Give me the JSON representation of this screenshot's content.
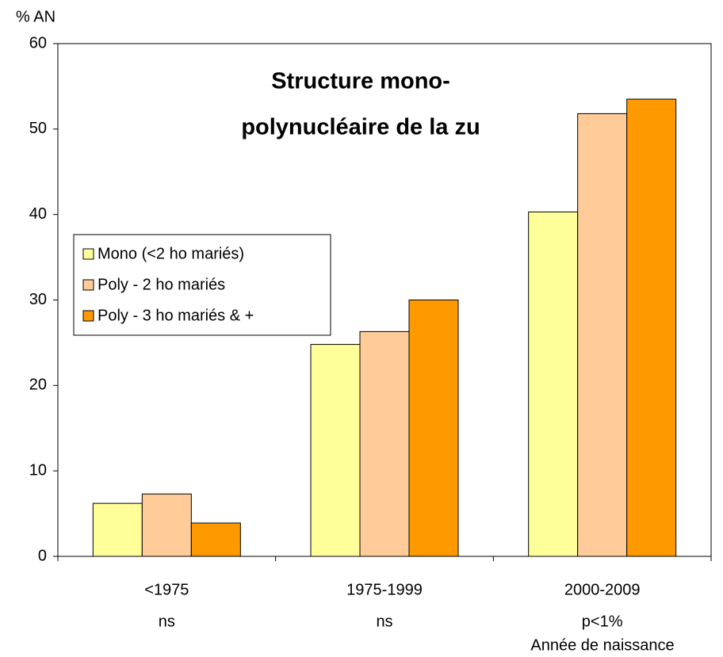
{
  "chart_data": {
    "type": "bar",
    "title": [
      "Structure mono-",
      "polynucléaire de la zu"
    ],
    "y_label": "% AN",
    "x_label": "Année de naissance",
    "categories": [
      "<1975",
      "1975-1999",
      "2000-2009"
    ],
    "category_notes": [
      "ns",
      "ns",
      "p<1%"
    ],
    "series": [
      {
        "name": "Mono (<2 ho mariés)",
        "color": "#ffff99",
        "values": [
          6.2,
          24.8,
          40.3
        ]
      },
      {
        "name": "Poly - 2 ho mariés",
        "color": "#ffcc99",
        "values": [
          7.3,
          26.3,
          51.8
        ]
      },
      {
        "name": "Poly - 3 ho mariés & +",
        "color": "#ff9900",
        "values": [
          3.9,
          30.0,
          53.5
        ]
      }
    ],
    "ylim": [
      0,
      60
    ],
    "yticks": [
      0,
      10,
      20,
      30,
      40,
      50,
      60
    ],
    "grid": false,
    "legend": "left"
  }
}
